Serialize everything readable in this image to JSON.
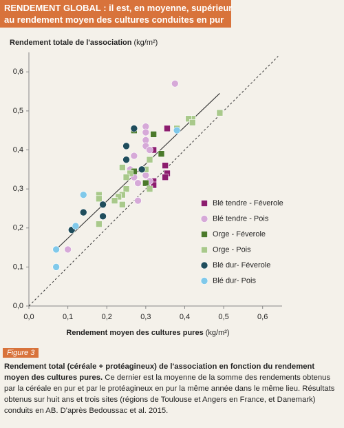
{
  "header": {
    "lines": [
      "RENDEMENT GLOBAL : il est, en moyenne, supérieur",
      "au rendement moyen des cultures conduites en pur"
    ]
  },
  "chart_data": {
    "type": "scatter",
    "y_label": "Rendement totale de l'association",
    "y_unit": "(kg/m²)",
    "x_label": "Rendement moyen des cultures pures",
    "x_unit": "(kg/m²)",
    "xlim": [
      0,
      0.65
    ],
    "ylim": [
      0,
      0.65
    ],
    "xticks": [
      {
        "value": 0,
        "label": "0,0"
      },
      {
        "value": 0.1,
        "label": "0,1"
      },
      {
        "value": 0.2,
        "label": "0,2"
      },
      {
        "value": 0.3,
        "label": "0,3"
      },
      {
        "value": 0.4,
        "label": "0,4"
      },
      {
        "value": 0.5,
        "label": "0,5"
      },
      {
        "value": 0.6,
        "label": "0,6"
      }
    ],
    "yticks": [
      {
        "value": 0,
        "label": "0,0"
      },
      {
        "value": 0.1,
        "label": "0,1"
      },
      {
        "value": 0.2,
        "label": "0,2"
      },
      {
        "value": 0.3,
        "label": "0,3"
      },
      {
        "value": 0.4,
        "label": "0,4"
      },
      {
        "value": 0.5,
        "label": "0,5"
      },
      {
        "value": 0.6,
        "label": "0,6"
      }
    ],
    "series": [
      {
        "name": "Blé tendre - Féverole",
        "color": "#8c1d6e",
        "marker": "square",
        "x": [
          0.355,
          0.32,
          0.35,
          0.355,
          0.35,
          0.32,
          0.32
        ],
        "y": [
          0.455,
          0.4,
          0.36,
          0.34,
          0.33,
          0.32,
          0.31
        ]
      },
      {
        "name": "Blé tendre - Pois",
        "color": "#d6a9d8",
        "marker": "circle",
        "x": [
          0.375,
          0.3,
          0.3,
          0.3,
          0.3,
          0.31,
          0.27,
          0.26,
          0.27,
          0.28,
          0.3,
          0.31,
          0.28,
          0.1
        ],
        "y": [
          0.57,
          0.46,
          0.445,
          0.425,
          0.41,
          0.4,
          0.385,
          0.35,
          0.33,
          0.315,
          0.335,
          0.32,
          0.27,
          0.145
        ]
      },
      {
        "name": "Orge - Féverole",
        "color": "#4b7a2b",
        "marker": "square",
        "x": [
          0.27,
          0.32,
          0.34,
          0.27,
          0.3
        ],
        "y": [
          0.45,
          0.44,
          0.39,
          0.345,
          0.315
        ]
      },
      {
        "name": "Orge - Pois",
        "color": "#a9c98b",
        "marker": "square",
        "x": [
          0.49,
          0.42,
          0.41,
          0.42,
          0.38,
          0.31,
          0.3,
          0.24,
          0.26,
          0.25,
          0.25,
          0.24,
          0.23,
          0.22,
          0.24,
          0.18,
          0.18,
          0.11,
          0.18,
          0.31
        ],
        "y": [
          0.495,
          0.48,
          0.48,
          0.47,
          0.455,
          0.375,
          0.35,
          0.355,
          0.34,
          0.33,
          0.3,
          0.285,
          0.28,
          0.27,
          0.26,
          0.285,
          0.275,
          0.195,
          0.21,
          0.3
        ]
      },
      {
        "name": "Blé dur- Féverole",
        "color": "#1f4d5c",
        "marker": "circle",
        "x": [
          0.27,
          0.25,
          0.29,
          0.25,
          0.14,
          0.19,
          0.19,
          0.11
        ],
        "y": [
          0.455,
          0.41,
          0.35,
          0.375,
          0.24,
          0.26,
          0.23,
          0.195
        ]
      },
      {
        "name": "Blé dur- Pois",
        "color": "#80c9ea",
        "marker": "circle",
        "x": [
          0.38,
          0.14,
          0.12,
          0.07,
          0.07
        ],
        "y": [
          0.45,
          0.285,
          0.205,
          0.145,
          0.1
        ]
      }
    ],
    "lines": [
      {
        "style": "solid",
        "x": [
          0.07,
          0.49
        ],
        "y": [
          0.145,
          0.545
        ]
      },
      {
        "style": "dashed",
        "x": [
          0,
          0.64
        ],
        "y": [
          0,
          0.64
        ]
      }
    ]
  },
  "caption": {
    "figure": "Figure 3",
    "bold": "Rendement total (céréale + protéagineux) de l'association en fonction du rendement moyen des cultures pures.",
    "text": "Ce dernier est la moyenne de la somme des rendements obtenus par la céréale en pur et par le protéagineux en pur la même année dans le même lieu. Résultats obtenus sur huit ans et trois sites (régions de Toulouse et Angers en France, et Danemark) conduits en AB. D'après Bedoussac et al. 2015."
  }
}
